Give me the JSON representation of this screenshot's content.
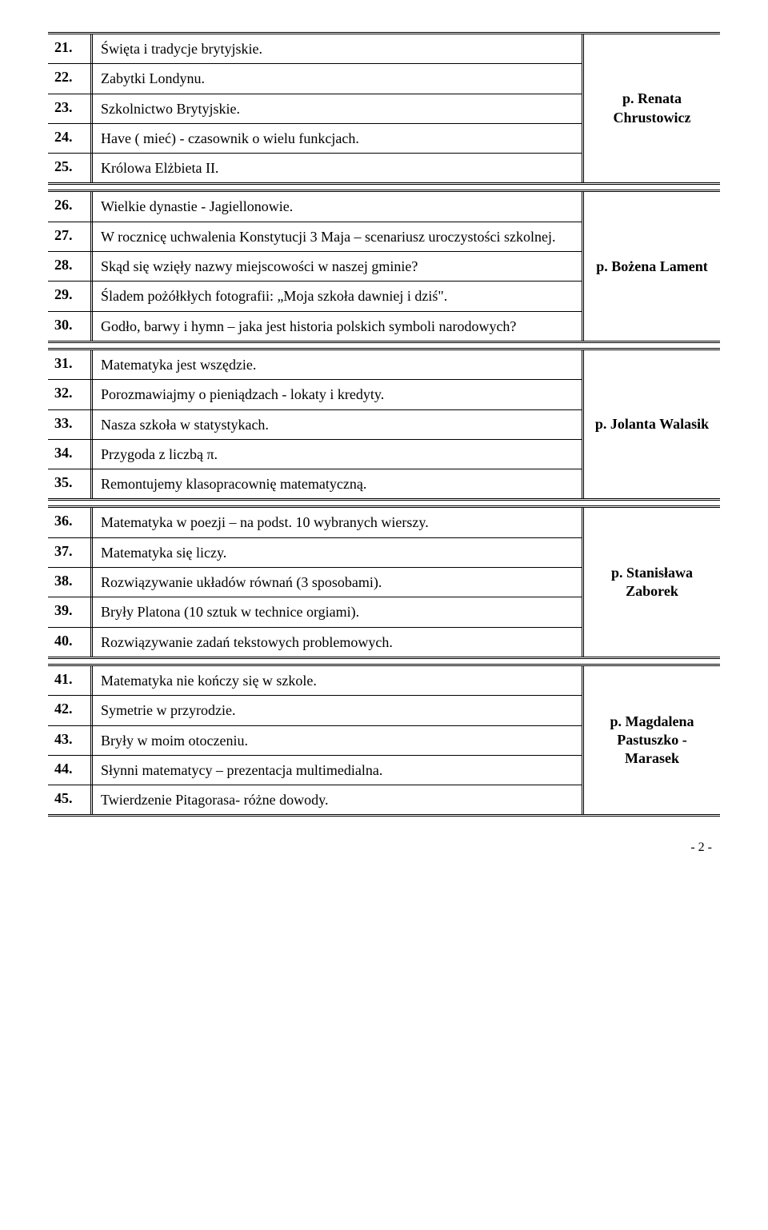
{
  "sections": [
    {
      "teacher": "p. Renata Chrustowicz",
      "rows": [
        {
          "num": "21.",
          "text": "Święta i tradycje brytyjskie."
        },
        {
          "num": "22.",
          "text": "Zabytki Londynu."
        },
        {
          "num": "23.",
          "text": "Szkolnictwo Brytyjskie."
        },
        {
          "num": "24.",
          "text": "Have ( mieć) - czasownik o wielu funkcjach."
        },
        {
          "num": "25.",
          "text": "Królowa Elżbieta II."
        }
      ]
    },
    {
      "teacher": "p. Bożena Lament",
      "rows": [
        {
          "num": "26.",
          "text": "Wielkie dynastie - Jagiellonowie."
        },
        {
          "num": "27.",
          "text": "W rocznicę uchwalenia Konstytucji 3 Maja – scenariusz uroczystości szkolnej."
        },
        {
          "num": "28.",
          "text": "Skąd się wzięły nazwy miejscowości w naszej gminie?"
        },
        {
          "num": "29.",
          "text": "Śladem pożółkłych fotografii: „Moja szkoła dawniej i dziś\"."
        },
        {
          "num": "30.",
          "text": "Godło, barwy i hymn – jaka jest historia polskich symboli narodowych?"
        }
      ]
    },
    {
      "teacher": "p. Jolanta Walasik",
      "rows": [
        {
          "num": "31.",
          "text": "Matematyka jest wszędzie."
        },
        {
          "num": "32.",
          "text": "Porozmawiajmy o pieniądzach - lokaty i kredyty."
        },
        {
          "num": "33.",
          "text": "Nasza szkoła w statystykach."
        },
        {
          "num": "34.",
          "text": "Przygoda z liczbą  π."
        },
        {
          "num": "35.",
          "text": "Remontujemy klasopracownię matematyczną."
        }
      ]
    },
    {
      "teacher": "p. Stanisława Zaborek",
      "rows": [
        {
          "num": "36.",
          "text": "Matematyka w poezji – na podst. 10 wybranych wierszy."
        },
        {
          "num": "37.",
          "text": "Matematyka się liczy."
        },
        {
          "num": "38.",
          "text": "Rozwiązywanie układów równań (3 sposobami)."
        },
        {
          "num": "39.",
          "text": "Bryły Platona (10 sztuk w technice orgiami)."
        },
        {
          "num": "40.",
          "text": "Rozwiązywanie zadań tekstowych problemowych."
        }
      ]
    },
    {
      "teacher": "p. Magdalena Pastuszko - Marasek",
      "rows": [
        {
          "num": "41.",
          "text": "Matematyka nie kończy się w szkole."
        },
        {
          "num": "42.",
          "text": "Symetrie w przyrodzie."
        },
        {
          "num": "43.",
          "text": "Bryły w moim otoczeniu."
        },
        {
          "num": "44.",
          "text": "Słynni matematycy – prezentacja multimedialna."
        },
        {
          "num": "45.",
          "text": "Twierdzenie Pitagorasa- różne dowody."
        }
      ]
    }
  ],
  "page_number": "- 2 -"
}
